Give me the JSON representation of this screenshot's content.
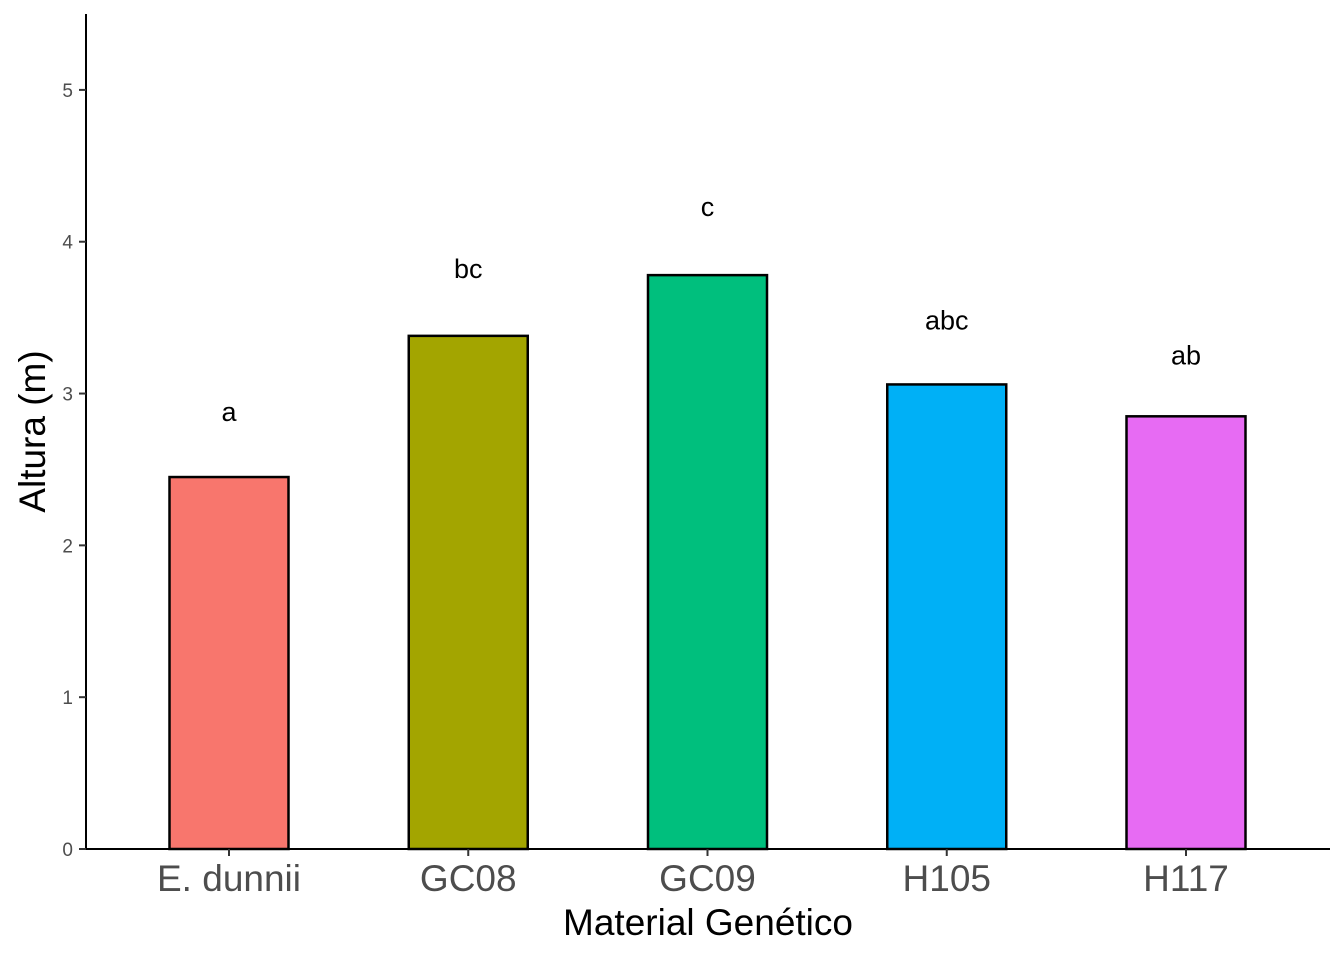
{
  "chart_data": {
    "type": "bar",
    "title": "",
    "xlabel": "Material Genético",
    "ylabel": "Altura (m)",
    "categories": [
      "E. dunnii",
      "GC08",
      "GC09",
      "H105",
      "H117"
    ],
    "values": [
      2.45,
      3.38,
      3.78,
      3.06,
      2.85
    ],
    "significance_letters": [
      "a",
      "bc",
      "c",
      "abc",
      "ab"
    ],
    "letter_positions": [
      2.88,
      3.82,
      4.23,
      3.48,
      3.25
    ],
    "colors": [
      "#F8766D",
      "#A3A500",
      "#00BF7D",
      "#00B0F6",
      "#E76BF3"
    ],
    "ylim": [
      0,
      5.5
    ],
    "yticks": [
      0,
      1,
      2,
      3,
      4,
      5
    ],
    "grid": false,
    "legend": "none"
  }
}
